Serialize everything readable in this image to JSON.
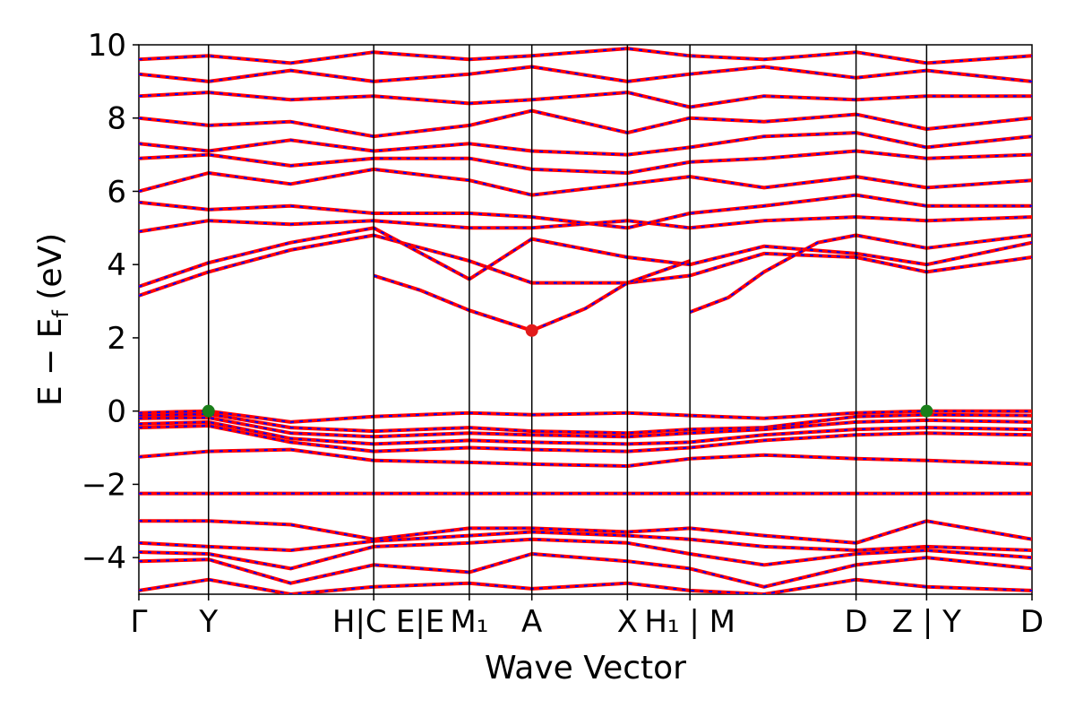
{
  "chart_data": {
    "type": "line",
    "title": "",
    "xlabel": "Wave Vector",
    "ylabel_parts": [
      "E − E",
      "f",
      " (eV)"
    ],
    "ylim": [
      -5,
      10
    ],
    "yticks": [
      {
        "v": -4,
        "label": "−4"
      },
      {
        "v": -2,
        "label": "−2"
      },
      {
        "v": 0,
        "label": "0"
      },
      {
        "v": 2,
        "label": "2"
      },
      {
        "v": 4,
        "label": "4"
      },
      {
        "v": 6,
        "label": "6"
      },
      {
        "v": 8,
        "label": "8"
      },
      {
        "v": 10,
        "label": "10"
      }
    ],
    "xlim": [
      0,
      1
    ],
    "kpoints": [
      {
        "x": 0.0,
        "label": "Γ"
      },
      {
        "x": 0.078,
        "label": "Y"
      },
      {
        "x": 0.263,
        "label": "H|C"
      },
      {
        "x": 0.37,
        "label": "E|M₁"
      },
      {
        "x": 0.44,
        "label": "A"
      },
      {
        "x": 0.547,
        "label": "X"
      },
      {
        "x": 0.617,
        "label": "H₁|M"
      },
      {
        "x": 0.803,
        "label": "D"
      },
      {
        "x": 0.882,
        "label": "Z|Y"
      },
      {
        "x": 1.0,
        "label": "D"
      }
    ],
    "xtick_labels": [
      {
        "x": 0.0,
        "text": "Γ"
      },
      {
        "x": 0.078,
        "text": "Y"
      },
      {
        "x": 0.247,
        "text": "H|C"
      },
      {
        "x": 0.315,
        "text": "E|E"
      },
      {
        "x": 0.37,
        "text": "M₁"
      },
      {
        "x": 0.44,
        "text": "A"
      },
      {
        "x": 0.547,
        "text": "X"
      },
      {
        "x": 0.617,
        "text": "H₁ | M"
      },
      {
        "x": 0.803,
        "text": "D"
      },
      {
        "x": 0.882,
        "text": "Z | Y"
      },
      {
        "x": 1.0,
        "text": "D"
      }
    ],
    "bands": [
      [
        [
          0,
          -0.05
        ],
        [
          0.04,
          -0.02
        ],
        [
          0.078,
          0.0
        ],
        [
          0.17,
          -0.3
        ],
        [
          0.263,
          -0.15
        ],
        [
          0.37,
          -0.05
        ],
        [
          0.44,
          -0.1
        ],
        [
          0.547,
          -0.05
        ],
        [
          0.617,
          -0.12
        ],
        [
          0.7,
          -0.2
        ],
        [
          0.803,
          -0.05
        ],
        [
          0.882,
          0.0
        ],
        [
          1,
          0.0
        ]
      ],
      [
        [
          0,
          -0.12
        ],
        [
          0.078,
          -0.08
        ],
        [
          0.17,
          -0.45
        ],
        [
          0.263,
          -0.55
        ],
        [
          0.37,
          -0.45
        ],
        [
          0.44,
          -0.55
        ],
        [
          0.547,
          -0.6
        ],
        [
          0.617,
          -0.5
        ],
        [
          0.7,
          -0.45
        ],
        [
          0.803,
          -0.15
        ],
        [
          0.882,
          -0.1
        ],
        [
          1,
          -0.12
        ]
      ],
      [
        [
          0,
          -0.2
        ],
        [
          0.078,
          -0.18
        ],
        [
          0.17,
          -0.6
        ],
        [
          0.263,
          -0.7
        ],
        [
          0.37,
          -0.6
        ],
        [
          0.44,
          -0.65
        ],
        [
          0.547,
          -0.7
        ],
        [
          0.617,
          -0.6
        ],
        [
          0.7,
          -0.5
        ],
        [
          0.803,
          -0.3
        ],
        [
          0.882,
          -0.25
        ],
        [
          1,
          -0.3
        ]
      ],
      [
        [
          0,
          -0.35
        ],
        [
          0.078,
          -0.3
        ],
        [
          0.17,
          -0.75
        ],
        [
          0.263,
          -0.9
        ],
        [
          0.37,
          -0.8
        ],
        [
          0.44,
          -0.85
        ],
        [
          0.547,
          -0.9
        ],
        [
          0.617,
          -0.85
        ],
        [
          0.7,
          -0.65
        ],
        [
          0.803,
          -0.5
        ],
        [
          0.882,
          -0.45
        ],
        [
          1,
          -0.5
        ]
      ],
      [
        [
          0,
          -0.45
        ],
        [
          0.078,
          -0.4
        ],
        [
          0.17,
          -0.85
        ],
        [
          0.263,
          -1.1
        ],
        [
          0.37,
          -1.0
        ],
        [
          0.44,
          -1.05
        ],
        [
          0.547,
          -1.1
        ],
        [
          0.617,
          -1.0
        ],
        [
          0.7,
          -0.8
        ],
        [
          0.803,
          -0.65
        ],
        [
          0.882,
          -0.6
        ],
        [
          1,
          -0.65
        ]
      ],
      [
        [
          0,
          -1.25
        ],
        [
          0.078,
          -1.1
        ],
        [
          0.17,
          -1.05
        ],
        [
          0.263,
          -1.35
        ],
        [
          0.37,
          -1.4
        ],
        [
          0.44,
          -1.45
        ],
        [
          0.547,
          -1.5
        ],
        [
          0.617,
          -1.3
        ],
        [
          0.7,
          -1.2
        ],
        [
          0.803,
          -1.3
        ],
        [
          0.882,
          -1.35
        ],
        [
          1,
          -1.45
        ]
      ],
      [
        [
          0,
          -2.25
        ],
        [
          0.078,
          -2.25
        ],
        [
          0.263,
          -2.25
        ],
        [
          0.617,
          -2.25
        ],
        [
          0.803,
          -2.25
        ],
        [
          1,
          -2.25
        ]
      ],
      [
        [
          0,
          -3.0
        ],
        [
          0.078,
          -3.0
        ],
        [
          0.17,
          -3.1
        ],
        [
          0.263,
          -3.5
        ],
        [
          0.37,
          -3.2
        ],
        [
          0.44,
          -3.2
        ],
        [
          0.547,
          -3.3
        ],
        [
          0.617,
          -3.2
        ],
        [
          0.7,
          -3.4
        ],
        [
          0.803,
          -3.6
        ],
        [
          0.882,
          -3.0
        ],
        [
          1,
          -3.5
        ]
      ],
      [
        [
          0,
          -3.6
        ],
        [
          0.078,
          -3.7
        ],
        [
          0.17,
          -3.8
        ],
        [
          0.263,
          -3.55
        ],
        [
          0.37,
          -3.4
        ],
        [
          0.44,
          -3.3
        ],
        [
          0.547,
          -3.4
        ],
        [
          0.617,
          -3.5
        ],
        [
          0.7,
          -3.7
        ],
        [
          0.803,
          -3.8
        ],
        [
          0.882,
          -3.7
        ],
        [
          1,
          -3.8
        ]
      ],
      [
        [
          0,
          -3.85
        ],
        [
          0.078,
          -3.9
        ],
        [
          0.17,
          -4.3
        ],
        [
          0.263,
          -3.7
        ],
        [
          0.37,
          -3.6
        ],
        [
          0.44,
          -3.5
        ],
        [
          0.547,
          -3.6
        ],
        [
          0.617,
          -3.9
        ],
        [
          0.7,
          -4.2
        ],
        [
          0.803,
          -3.9
        ],
        [
          0.882,
          -3.8
        ],
        [
          1,
          -4.0
        ]
      ],
      [
        [
          0,
          -4.1
        ],
        [
          0.078,
          -4.05
        ],
        [
          0.17,
          -4.7
        ],
        [
          0.263,
          -4.2
        ],
        [
          0.37,
          -4.4
        ],
        [
          0.44,
          -3.9
        ],
        [
          0.547,
          -4.1
        ],
        [
          0.617,
          -4.3
        ],
        [
          0.7,
          -4.8
        ],
        [
          0.803,
          -4.2
        ],
        [
          0.882,
          -4.0
        ],
        [
          1,
          -4.3
        ]
      ],
      [
        [
          0,
          -4.9
        ],
        [
          0.078,
          -4.6
        ],
        [
          0.17,
          -5.0
        ],
        [
          0.263,
          -4.8
        ],
        [
          0.37,
          -4.7
        ],
        [
          0.44,
          -4.85
        ],
        [
          0.547,
          -4.7
        ],
        [
          0.617,
          -4.9
        ],
        [
          0.7,
          -5.0
        ],
        [
          0.803,
          -4.6
        ],
        [
          0.882,
          -4.8
        ],
        [
          1,
          -4.9
        ]
      ],
      [
        [
          0,
          3.15
        ],
        [
          0.078,
          3.8
        ],
        [
          0.17,
          4.4
        ],
        [
          0.263,
          4.8
        ],
        [
          0.37,
          4.1
        ],
        [
          0.44,
          3.5
        ],
        [
          0.547,
          3.5
        ],
        [
          0.617,
          3.7
        ],
        [
          0.7,
          4.3
        ],
        [
          0.803,
          4.2
        ],
        [
          0.882,
          3.8
        ],
        [
          1,
          4.2
        ]
      ],
      [
        [
          0,
          3.4
        ],
        [
          0.078,
          4.05
        ],
        [
          0.17,
          4.6
        ],
        [
          0.263,
          5.0
        ],
        [
          0.37,
          3.6
        ],
        [
          0.44,
          4.7
        ],
        [
          0.547,
          4.2
        ],
        [
          0.617,
          4.0
        ],
        [
          0.7,
          4.5
        ],
        [
          0.803,
          4.3
        ],
        [
          0.882,
          4.0
        ],
        [
          1,
          4.6
        ]
      ],
      [
        [
          0.263,
          3.7
        ],
        [
          0.315,
          3.3
        ],
        [
          0.37,
          2.75
        ],
        [
          0.44,
          2.2
        ],
        [
          0.5,
          2.8
        ],
        [
          0.547,
          3.5
        ],
        [
          0.617,
          4.1
        ]
      ],
      [
        [
          0.617,
          2.7
        ],
        [
          0.66,
          3.1
        ],
        [
          0.7,
          3.8
        ],
        [
          0.76,
          4.6
        ],
        [
          0.803,
          4.8
        ],
        [
          0.882,
          4.45
        ],
        [
          1,
          4.8
        ]
      ],
      [
        [
          0,
          4.9
        ],
        [
          0.078,
          5.2
        ],
        [
          0.17,
          5.1
        ],
        [
          0.263,
          5.2
        ],
        [
          0.37,
          5.0
        ],
        [
          0.44,
          5.0
        ],
        [
          0.547,
          5.2
        ],
        [
          0.617,
          5.0
        ],
        [
          0.7,
          5.2
        ],
        [
          0.803,
          5.3
        ],
        [
          0.882,
          5.2
        ],
        [
          1,
          5.3
        ]
      ],
      [
        [
          0,
          5.7
        ],
        [
          0.078,
          5.5
        ],
        [
          0.17,
          5.6
        ],
        [
          0.263,
          5.4
        ],
        [
          0.37,
          5.4
        ],
        [
          0.44,
          5.3
        ],
        [
          0.547,
          5.0
        ],
        [
          0.617,
          5.4
        ],
        [
          0.7,
          5.6
        ],
        [
          0.803,
          5.9
        ],
        [
          0.882,
          5.6
        ],
        [
          1,
          5.6
        ]
      ],
      [
        [
          0,
          6.0
        ],
        [
          0.078,
          6.5
        ],
        [
          0.17,
          6.2
        ],
        [
          0.263,
          6.6
        ],
        [
          0.37,
          6.3
        ],
        [
          0.44,
          5.9
        ],
        [
          0.547,
          6.2
        ],
        [
          0.617,
          6.4
        ],
        [
          0.7,
          6.1
        ],
        [
          0.803,
          6.4
        ],
        [
          0.882,
          6.1
        ],
        [
          1,
          6.3
        ]
      ],
      [
        [
          0,
          6.9
        ],
        [
          0.078,
          7.0
        ],
        [
          0.17,
          6.7
        ],
        [
          0.263,
          6.9
        ],
        [
          0.37,
          6.9
        ],
        [
          0.44,
          6.6
        ],
        [
          0.547,
          6.5
        ],
        [
          0.617,
          6.8
        ],
        [
          0.7,
          6.9
        ],
        [
          0.803,
          7.1
        ],
        [
          0.882,
          6.9
        ],
        [
          1,
          7.0
        ]
      ],
      [
        [
          0,
          7.3
        ],
        [
          0.078,
          7.1
        ],
        [
          0.17,
          7.4
        ],
        [
          0.263,
          7.1
        ],
        [
          0.37,
          7.3
        ],
        [
          0.44,
          7.1
        ],
        [
          0.547,
          7.0
        ],
        [
          0.617,
          7.2
        ],
        [
          0.7,
          7.5
        ],
        [
          0.803,
          7.6
        ],
        [
          0.882,
          7.2
        ],
        [
          1,
          7.5
        ]
      ],
      [
        [
          0,
          8.0
        ],
        [
          0.078,
          7.8
        ],
        [
          0.17,
          7.9
        ],
        [
          0.263,
          7.5
        ],
        [
          0.37,
          7.8
        ],
        [
          0.44,
          8.2
        ],
        [
          0.547,
          7.6
        ],
        [
          0.617,
          8.0
        ],
        [
          0.7,
          7.9
        ],
        [
          0.803,
          8.1
        ],
        [
          0.882,
          7.7
        ],
        [
          1,
          8.0
        ]
      ],
      [
        [
          0,
          8.6
        ],
        [
          0.078,
          8.7
        ],
        [
          0.17,
          8.5
        ],
        [
          0.263,
          8.6
        ],
        [
          0.37,
          8.4
        ],
        [
          0.44,
          8.5
        ],
        [
          0.547,
          8.7
        ],
        [
          0.617,
          8.3
        ],
        [
          0.7,
          8.6
        ],
        [
          0.803,
          8.5
        ],
        [
          0.882,
          8.6
        ],
        [
          1,
          8.6
        ]
      ],
      [
        [
          0,
          9.2
        ],
        [
          0.078,
          9.0
        ],
        [
          0.17,
          9.3
        ],
        [
          0.263,
          9.0
        ],
        [
          0.37,
          9.2
        ],
        [
          0.44,
          9.4
        ],
        [
          0.547,
          9.0
        ],
        [
          0.617,
          9.2
        ],
        [
          0.7,
          9.4
        ],
        [
          0.803,
          9.1
        ],
        [
          0.882,
          9.3
        ],
        [
          1,
          9.0
        ]
      ],
      [
        [
          0,
          9.6
        ],
        [
          0.078,
          9.7
        ],
        [
          0.17,
          9.5
        ],
        [
          0.263,
          9.8
        ],
        [
          0.37,
          9.6
        ],
        [
          0.44,
          9.7
        ],
        [
          0.547,
          9.9
        ],
        [
          0.617,
          9.7
        ],
        [
          0.7,
          9.6
        ],
        [
          0.803,
          9.8
        ],
        [
          0.882,
          9.5
        ],
        [
          1,
          9.7
        ]
      ]
    ],
    "points": [
      {
        "x": 0.078,
        "y": 0.0,
        "color": "#1a7f1a"
      },
      {
        "x": 0.882,
        "y": 0.0,
        "color": "#1a7f1a"
      },
      {
        "x": 0.44,
        "y": 2.2,
        "color": "#e21b1b"
      }
    ],
    "colors": {
      "band_primary": "#ff0000",
      "band_secondary": "#0000ff",
      "vline": "#000000"
    }
  }
}
